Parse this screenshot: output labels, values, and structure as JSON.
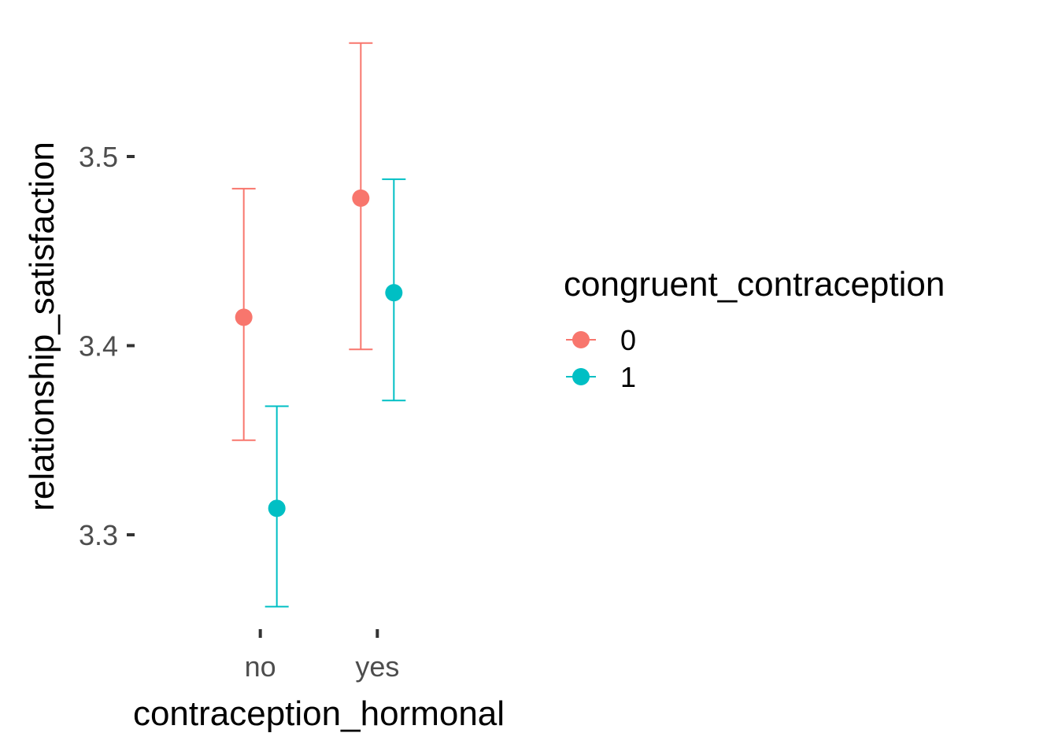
{
  "chart_data": {
    "type": "scatter",
    "subtype": "pointrange",
    "title": "",
    "xlabel": "contraception_hormonal",
    "ylabel": "relationship_satisfaction",
    "categories": [
      "no",
      "yes"
    ],
    "ylim": [
      3.24,
      3.57
    ],
    "yticks": [
      3.3,
      3.4,
      3.5
    ],
    "ytick_labels": [
      "3.3",
      "3.4",
      "3.5"
    ],
    "grid": false,
    "legend": {
      "title": "congruent_contraception",
      "position": "right"
    },
    "series": [
      {
        "name": "0",
        "color": "#F8766D",
        "points": [
          {
            "x": "no",
            "y": 3.415,
            "ymin": 3.35,
            "ymax": 3.483
          },
          {
            "x": "yes",
            "y": 3.478,
            "ymin": 3.398,
            "ymax": 3.56
          }
        ]
      },
      {
        "name": "1",
        "color": "#00BFC4",
        "points": [
          {
            "x": "no",
            "y": 3.314,
            "ymin": 3.262,
            "ymax": 3.368
          },
          {
            "x": "yes",
            "y": 3.428,
            "ymin": 3.371,
            "ymax": 3.488
          }
        ]
      }
    ]
  }
}
